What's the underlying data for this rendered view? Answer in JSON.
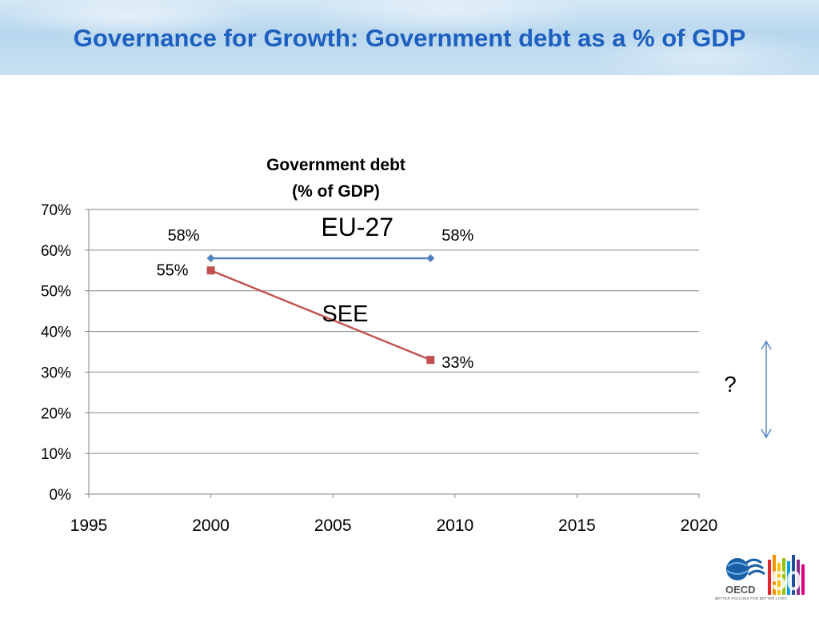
{
  "slide": {
    "title": "Governance for Growth: Government debt as a % of GDP"
  },
  "chart_data": {
    "type": "line",
    "title": "Government debt",
    "subtitle": "(% of GDP)",
    "xlim": [
      1995,
      2020
    ],
    "x_ticks": [
      "1995",
      "2000",
      "2005",
      "2010",
      "2015",
      "2020"
    ],
    "ylim": [
      0,
      70
    ],
    "y_ticks": [
      "0%",
      "10%",
      "20%",
      "30%",
      "40%",
      "50%",
      "60%",
      "70%"
    ],
    "grid": true,
    "series": [
      {
        "name": "EU-27",
        "color": "#4f81bd",
        "marker": "diamond",
        "x": [
          2000,
          2009
        ],
        "y": [
          58,
          58
        ],
        "labels": [
          "58%",
          "58%"
        ]
      },
      {
        "name": "SEE",
        "color": "#c0504d",
        "marker": "square",
        "x": [
          2000,
          2009
        ],
        "y": [
          55,
          33
        ],
        "labels": [
          "55%",
          "33%"
        ]
      }
    ],
    "annotations": [
      {
        "text": "?",
        "arrow": "double-vertical",
        "color": "#4f81bd"
      }
    ]
  },
  "logo": {
    "text": "OECD",
    "number": "50",
    "tagline": "BETTER POLICIES FOR BETTER LIVES"
  }
}
